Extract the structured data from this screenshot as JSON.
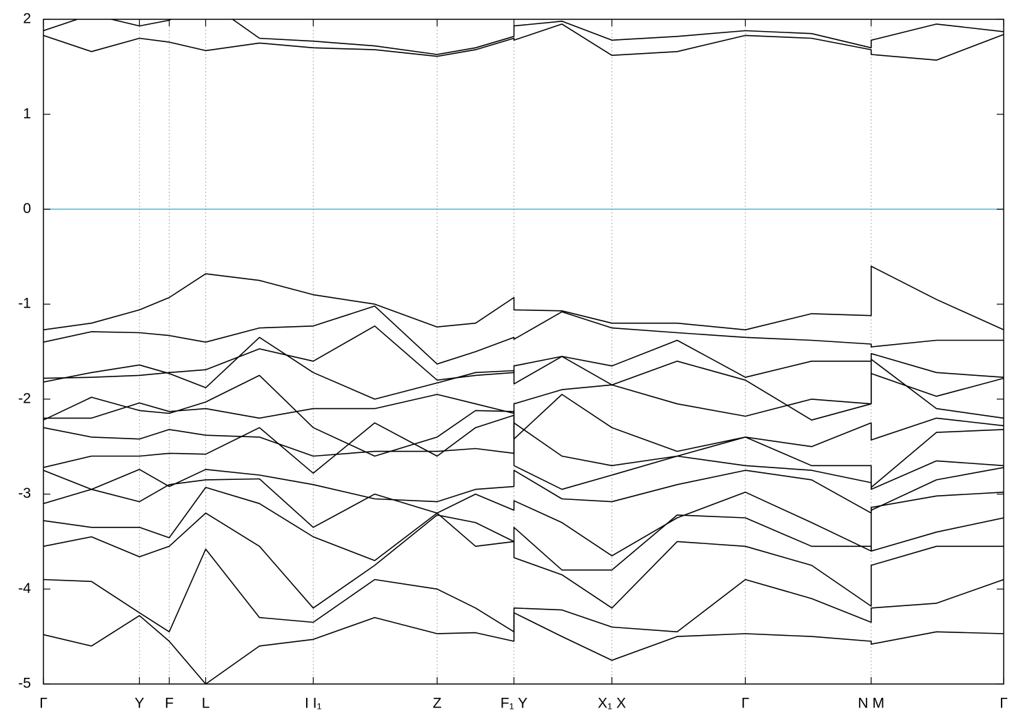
{
  "chart_data": {
    "type": "line",
    "x": [
      0,
      0.05,
      0.1,
      0.131,
      0.169,
      0.225,
      0.281,
      0.345,
      0.41,
      0.45,
      0.49,
      0.49,
      0.54,
      0.592,
      0.66,
      0.731,
      0.8,
      0.862,
      0.862,
      0.93,
      1
    ],
    "xlim": [
      0,
      1
    ],
    "xticks": [
      {
        "value": 0,
        "label": "Γ"
      },
      {
        "value": 0.1,
        "label": "Y"
      },
      {
        "value": 0.131,
        "label": "F"
      },
      {
        "value": 0.169,
        "label": "L"
      },
      {
        "value": 0.281,
        "label": "I I₁"
      },
      {
        "value": 0.41,
        "label": "Z"
      },
      {
        "value": 0.49,
        "label": "F₁ Y"
      },
      {
        "value": 0.592,
        "label": "X₁ X"
      },
      {
        "value": 0.731,
        "label": "Γ"
      },
      {
        "value": 0.862,
        "label": "N M"
      },
      {
        "value": 1,
        "label": "Γ"
      }
    ],
    "ylim": [
      -5,
      2
    ],
    "yticks": [
      -5,
      -4,
      -3,
      -2,
      -1,
      0,
      1,
      2
    ],
    "grid": true,
    "reference_line": {
      "y": 0,
      "color": "#5ab3c9"
    },
    "series": [
      {
        "color": "#000000",
        "values": [
          1.83,
          1.66,
          1.8,
          1.76,
          1.67,
          1.75,
          1.7,
          1.68,
          1.61,
          1.68,
          1.8,
          1.78,
          1.95,
          1.62,
          1.66,
          1.83,
          1.8,
          1.68,
          1.63,
          1.57,
          1.84
        ]
      },
      {
        "color": "#000000",
        "values": [
          1.88,
          2.05,
          1.93,
          1.99,
          2.2,
          1.8,
          1.77,
          1.72,
          1.63,
          1.7,
          1.82,
          1.93,
          1.98,
          1.78,
          1.82,
          1.88,
          1.85,
          1.7,
          1.78,
          1.95,
          1.87
        ]
      },
      {
        "color": "#000000",
        "values": [
          -1.27,
          -1.2,
          -1.06,
          -0.93,
          -0.68,
          -0.75,
          -0.9,
          -1.0,
          -1.24,
          -1.2,
          -0.93,
          -1.06,
          -1.07,
          -1.2,
          -1.2,
          -1.27,
          -1.1,
          -1.12,
          -0.6,
          -0.95,
          -1.27
        ]
      },
      {
        "color": "#000000",
        "values": [
          -1.4,
          -1.29,
          -1.3,
          -1.33,
          -1.4,
          -1.25,
          -1.23,
          -1.02,
          -1.63,
          -1.5,
          -1.35,
          -1.37,
          -1.08,
          -1.25,
          -1.3,
          -1.35,
          -1.38,
          -1.42,
          -1.45,
          -1.38,
          -1.38
        ]
      },
      {
        "color": "#000000",
        "values": [
          -1.78,
          -1.77,
          -1.75,
          -1.72,
          -1.69,
          -1.47,
          -1.6,
          -1.23,
          -1.8,
          -1.75,
          -1.72,
          -1.65,
          -1.55,
          -1.65,
          -1.38,
          -1.77,
          -1.6,
          -1.6,
          -1.52,
          -1.72,
          -1.77
        ]
      },
      {
        "color": "#000000",
        "values": [
          -1.82,
          -1.72,
          -1.64,
          -1.73,
          -1.88,
          -1.35,
          -1.72,
          -2.0,
          -1.83,
          -1.72,
          -1.7,
          -1.84,
          -1.55,
          -1.85,
          -1.6,
          -1.8,
          -2.22,
          -2.05,
          -1.73,
          -1.97,
          -1.78
        ]
      },
      {
        "color": "#000000",
        "values": [
          -2.2,
          -2.2,
          -2.04,
          -2.13,
          -2.1,
          -2.2,
          -2.1,
          -2.1,
          -1.95,
          -2.05,
          -2.15,
          -2.05,
          -1.9,
          -1.85,
          -2.05,
          -2.18,
          -2.0,
          -2.05,
          -1.58,
          -2.1,
          -2.2
        ]
      },
      {
        "color": "#000000",
        "values": [
          -2.22,
          -1.98,
          -2.12,
          -2.15,
          -2.03,
          -1.75,
          -2.3,
          -2.6,
          -2.4,
          -2.12,
          -2.13,
          -2.42,
          -1.95,
          -2.3,
          -2.55,
          -2.4,
          -2.5,
          -2.25,
          -2.43,
          -2.2,
          -2.28
        ]
      },
      {
        "color": "#000000",
        "values": [
          -2.3,
          -2.4,
          -2.42,
          -2.32,
          -2.38,
          -2.4,
          -2.6,
          -2.55,
          -2.55,
          -2.52,
          -2.57,
          -2.25,
          -2.6,
          -2.7,
          -2.6,
          -2.4,
          -2.7,
          -2.7,
          -2.93,
          -2.35,
          -2.32
        ]
      },
      {
        "color": "#000000",
        "values": [
          -2.72,
          -2.6,
          -2.6,
          -2.57,
          -2.58,
          -2.3,
          -2.78,
          -2.25,
          -2.6,
          -2.3,
          -2.17,
          -2.7,
          -2.95,
          -2.8,
          -2.6,
          -2.7,
          -2.75,
          -2.88,
          -2.95,
          -2.65,
          -2.7
        ]
      },
      {
        "color": "#000000",
        "values": [
          -2.75,
          -2.95,
          -2.74,
          -2.92,
          -2.74,
          -2.8,
          -2.9,
          -3.05,
          -3.08,
          -2.95,
          -2.92,
          -2.75,
          -3.05,
          -3.08,
          -2.9,
          -2.75,
          -2.85,
          -3.2,
          -3.17,
          -2.85,
          -2.72
        ]
      },
      {
        "color": "#000000",
        "values": [
          -3.1,
          -2.95,
          -3.08,
          -2.9,
          -2.85,
          -2.84,
          -3.35,
          -3.0,
          -3.2,
          -3.0,
          -3.17,
          -3.07,
          -3.3,
          -3.65,
          -3.25,
          -2.98,
          -3.3,
          -3.6,
          -3.14,
          -3.02,
          -2.98
        ]
      },
      {
        "color": "#000000",
        "values": [
          -3.28,
          -3.35,
          -3.35,
          -3.46,
          -2.93,
          -3.1,
          -3.45,
          -3.7,
          -3.2,
          -3.55,
          -3.5,
          -3.35,
          -3.8,
          -3.8,
          -3.22,
          -3.25,
          -3.55,
          -3.55,
          -3.6,
          -3.4,
          -3.25
        ]
      },
      {
        "color": "#000000",
        "values": [
          -3.55,
          -3.45,
          -3.66,
          -3.55,
          -3.2,
          -3.55,
          -4.2,
          -3.75,
          -3.22,
          -3.3,
          -3.5,
          -3.67,
          -3.85,
          -4.2,
          -3.5,
          -3.55,
          -3.75,
          -4.18,
          -3.75,
          -3.55,
          -3.55
        ]
      },
      {
        "color": "#000000",
        "values": [
          -3.9,
          -3.92,
          -4.25,
          -4.45,
          -3.58,
          -4.3,
          -4.35,
          -3.9,
          -4.0,
          -4.2,
          -4.45,
          -4.2,
          -4.22,
          -4.4,
          -4.45,
          -3.9,
          -4.1,
          -4.35,
          -4.2,
          -4.15,
          -3.9
        ]
      },
      {
        "color": "#000000",
        "values": [
          -4.48,
          -4.6,
          -4.28,
          -4.55,
          -5.0,
          -4.6,
          -4.53,
          -4.3,
          -4.47,
          -4.46,
          -4.55,
          -4.25,
          -4.5,
          -4.75,
          -4.5,
          -4.47,
          -4.5,
          -4.55,
          -4.58,
          -4.45,
          -4.47
        ]
      }
    ]
  }
}
